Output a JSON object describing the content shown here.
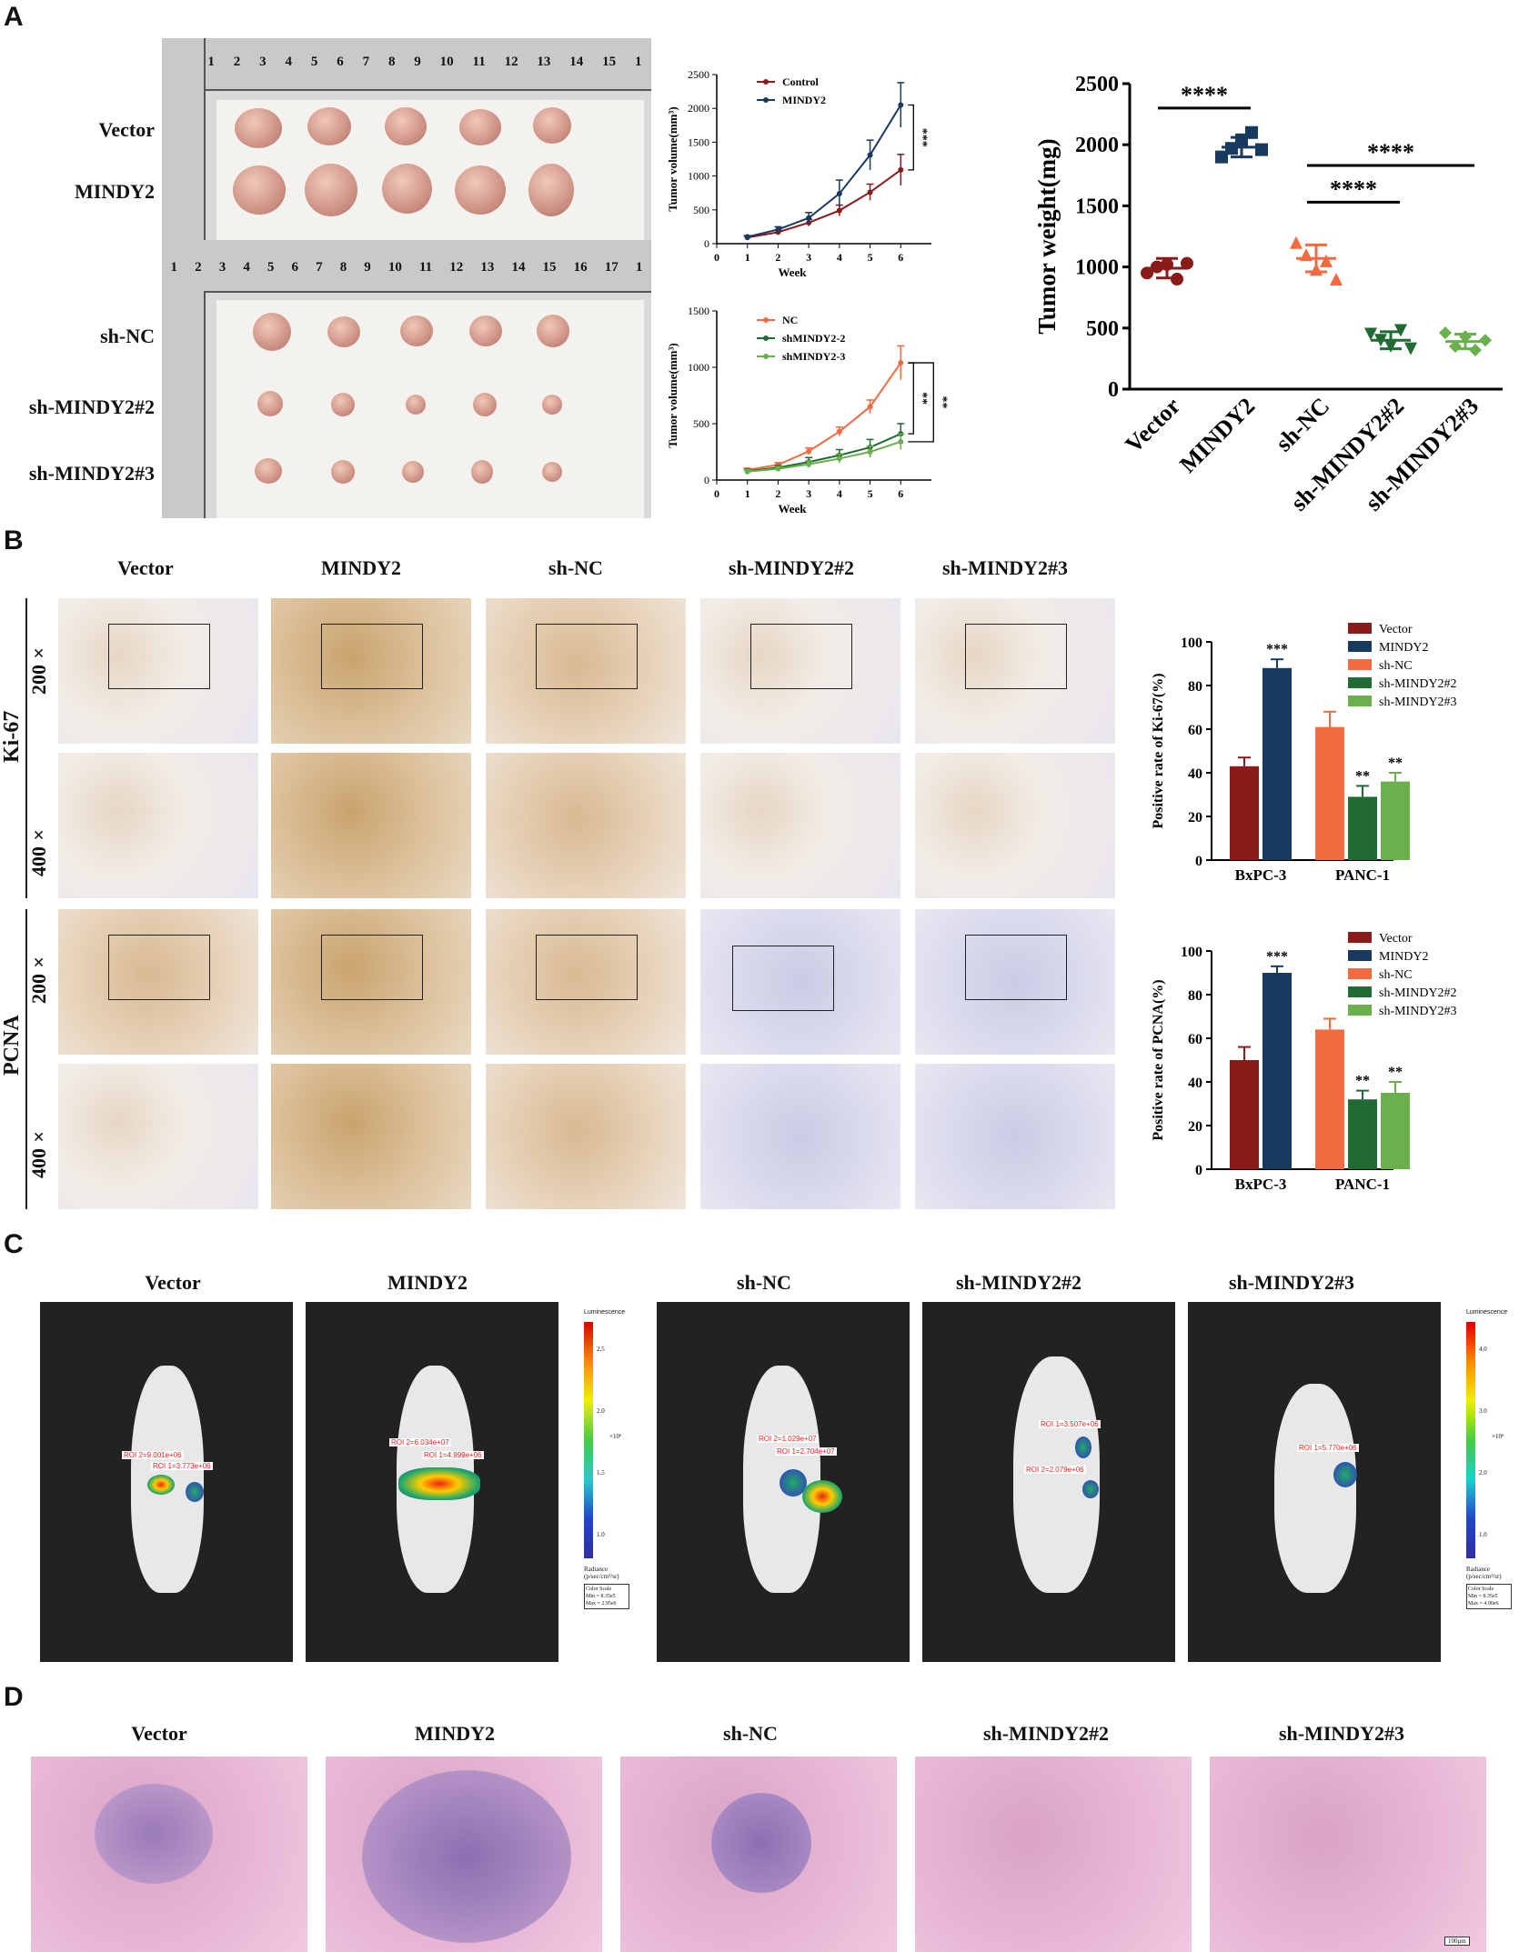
{
  "panels": {
    "a": "A",
    "b": "B",
    "c": "C",
    "d": "D"
  },
  "panelA": {
    "photo_top_rows": [
      "Vector",
      "MINDY2"
    ],
    "photo_bottom_rows": [
      "sh-NC",
      "sh-MINDY2#2",
      "sh-MINDY2#3"
    ],
    "ruler_numbers_top": [
      "1",
      "2",
      "3",
      "4",
      "5",
      "6",
      "7",
      "8",
      "9",
      "10",
      "11",
      "12",
      "13",
      "14",
      "15",
      "1"
    ],
    "ruler_numbers_bottom": [
      "1",
      "2",
      "3",
      "4",
      "5",
      "6",
      "7",
      "8",
      "9",
      "10",
      "11",
      "12",
      "13",
      "14",
      "15",
      "16",
      "17",
      "1"
    ]
  },
  "panelB": {
    "columns": [
      "Vector",
      "MINDY2",
      "sh-NC",
      "sh-MINDY2#2",
      "sh-MINDY2#3"
    ],
    "rows": {
      "ki67": "Ki-67",
      "pcna": "PCNA",
      "mag200": "200×",
      "mag400": "400×"
    }
  },
  "panelC": {
    "columns": [
      "Vector",
      "MINDY2",
      "sh-NC",
      "sh-MINDY2#2",
      "sh-MINDY2#3"
    ],
    "legend_title": "Luminescence",
    "legend_unit": "×10⁶",
    "legend_radiance": "Radiance",
    "legend_radiance_unit": "(p/sec/cm²/sr)",
    "colorbar_left": {
      "ticks": [
        "2.5",
        "2.0",
        "1.5",
        "1.0"
      ],
      "scale_title": "Color Scale",
      "min": "Min = 8.35e5",
      "max": "Max = 2.95e6"
    },
    "colorbar_right": {
      "ticks": [
        "4.0",
        "3.0",
        "2.0",
        "1.0"
      ],
      "scale_title": "Color Scale",
      "min": "Min = 8.35e5",
      "max": "Max = 4.90e6"
    },
    "roi_labels": [
      "ROI 2=9.001e+06",
      "ROI 1=3.773e+06",
      "ROI 2=6.034e+07",
      "ROI 1=4.999e+06",
      "ROI 2=1.029e+07",
      "ROI 1=2.704e+07",
      "ROI 1=3.507e+06",
      "ROI 2=2.079e+06",
      "ROI 1=5.770e+06"
    ]
  },
  "panelD": {
    "columns": [
      "Vector",
      "MINDY2",
      "sh-NC",
      "sh-MINDY2#2",
      "sh-MINDY2#3"
    ],
    "scale": "100μm"
  },
  "colors": {
    "control": "#8b1a1a",
    "mindy2": "#173a5e",
    "nc": "#f26a3f",
    "sh2": "#1f6b33",
    "sh3": "#6ab04c"
  },
  "chart_data": [
    {
      "type": "line",
      "id": "volume-overexpression",
      "ylabel": "Tumor volume(mm³)",
      "xlabel": "Week",
      "xlim": [
        0,
        7
      ],
      "ylim": [
        0,
        2500
      ],
      "xticks": [
        "0",
        "1",
        "2",
        "3",
        "4",
        "5",
        "6"
      ],
      "yticks": [
        "0",
        "500",
        "1000",
        "1500",
        "2000",
        "2500"
      ],
      "x": [
        1,
        2,
        3,
        4,
        5,
        6
      ],
      "series": [
        {
          "name": "Control",
          "values": [
            90,
            170,
            310,
            490,
            760,
            1090
          ],
          "err": [
            20,
            30,
            50,
            80,
            120,
            230
          ],
          "color": "#8b1a1a"
        },
        {
          "name": "MINDY2",
          "values": [
            100,
            210,
            380,
            740,
            1310,
            2050
          ],
          "err": [
            20,
            40,
            80,
            200,
            220,
            330
          ],
          "color": "#173a5e"
        }
      ],
      "significance": [
        "***"
      ]
    },
    {
      "type": "line",
      "id": "volume-knockdown",
      "ylabel": "Tumor volume(mm³)",
      "xlabel": "Week",
      "xlim": [
        0,
        7
      ],
      "ylim": [
        0,
        1500
      ],
      "xticks": [
        "0",
        "1",
        "2",
        "3",
        "4",
        "5",
        "6"
      ],
      "yticks": [
        "0",
        "500",
        "1000",
        "1500"
      ],
      "x": [
        1,
        2,
        3,
        4,
        5,
        6
      ],
      "series": [
        {
          "name": "NC",
          "values": [
            90,
            135,
            255,
            430,
            650,
            1040
          ],
          "err": [
            15,
            20,
            30,
            40,
            60,
            150
          ],
          "color": "#f26a3f"
        },
        {
          "name": "shMINDY2-2",
          "values": [
            80,
            110,
            160,
            220,
            290,
            410
          ],
          "err": [
            15,
            20,
            40,
            50,
            70,
            90
          ],
          "color": "#1f6b33"
        },
        {
          "name": "shMINDY2-3",
          "values": [
            75,
            100,
            140,
            190,
            250,
            340
          ],
          "err": [
            15,
            20,
            30,
            40,
            50,
            70
          ],
          "color": "#6ab04c"
        }
      ],
      "significance": [
        "**",
        "**"
      ]
    },
    {
      "type": "scatter",
      "id": "tumor-weight",
      "ylabel": "Tumor weight(mg)",
      "ylim": [
        0,
        2500
      ],
      "yticks": [
        "0",
        "500",
        "1000",
        "1500",
        "2000",
        "2500"
      ],
      "categories": [
        "Vector",
        "MINDY2",
        "sh-NC",
        "sh-MINDY2#2",
        "sh-MINDY2#3"
      ],
      "series": [
        {
          "name": "Vector",
          "values": [
            950,
            1000,
            1020,
            900,
            1030
          ],
          "mean": 990,
          "sd": 80,
          "color": "#8b1a1a",
          "marker": "circle"
        },
        {
          "name": "MINDY2",
          "values": [
            1900,
            1970,
            2040,
            2100,
            1960
          ],
          "mean": 1980,
          "sd": 80,
          "color": "#173a5e",
          "marker": "square"
        },
        {
          "name": "sh-NC",
          "values": [
            1200,
            1100,
            980,
            1050,
            900
          ],
          "mean": 1070,
          "sd": 110,
          "color": "#f26a3f",
          "marker": "triangle-up"
        },
        {
          "name": "sh-MINDY2#2",
          "values": [
            450,
            400,
            350,
            480,
            330
          ],
          "mean": 400,
          "sd": 70,
          "color": "#1f6b33",
          "marker": "triangle-down"
        },
        {
          "name": "sh-MINDY2#3",
          "values": [
            460,
            350,
            430,
            320,
            400
          ],
          "mean": 390,
          "sd": 60,
          "color": "#6ab04c",
          "marker": "diamond"
        }
      ],
      "significance": [
        "****",
        "****",
        "****"
      ]
    },
    {
      "type": "bar",
      "id": "ki67-rate",
      "ylabel": "Positive rate of Ki-67(%)",
      "ylim": [
        0,
        100
      ],
      "yticks": [
        "0",
        "20",
        "40",
        "60",
        "80",
        "100"
      ],
      "categories": [
        "BxPC-3",
        "PANC-1"
      ],
      "series": [
        {
          "name": "Vector",
          "group": "BxPC-3",
          "value": 43,
          "err": 4,
          "color": "#8b1a1a"
        },
        {
          "name": "MINDY2",
          "group": "BxPC-3",
          "value": 88,
          "err": 4,
          "color": "#173a5e",
          "sig": "***"
        },
        {
          "name": "sh-NC",
          "group": "PANC-1",
          "value": 61,
          "err": 7,
          "color": "#f26a3f"
        },
        {
          "name": "sh-MINDY2#2",
          "group": "PANC-1",
          "value": 29,
          "err": 5,
          "color": "#1f6b33",
          "sig": "**"
        },
        {
          "name": "sh-MINDY2#3",
          "group": "PANC-1",
          "value": 36,
          "err": 4,
          "color": "#6ab04c",
          "sig": "**"
        }
      ]
    },
    {
      "type": "bar",
      "id": "pcna-rate",
      "ylabel": "Positive rate of PCNA(%)",
      "ylim": [
        0,
        100
      ],
      "yticks": [
        "0",
        "20",
        "40",
        "60",
        "80",
        "100"
      ],
      "categories": [
        "BxPC-3",
        "PANC-1"
      ],
      "series": [
        {
          "name": "Vector",
          "group": "BxPC-3",
          "value": 50,
          "err": 6,
          "color": "#8b1a1a"
        },
        {
          "name": "MINDY2",
          "group": "BxPC-3",
          "value": 90,
          "err": 3,
          "color": "#173a5e",
          "sig": "***"
        },
        {
          "name": "sh-NC",
          "group": "PANC-1",
          "value": 64,
          "err": 5,
          "color": "#f26a3f"
        },
        {
          "name": "sh-MINDY2#2",
          "group": "PANC-1",
          "value": 32,
          "err": 4,
          "color": "#1f6b33",
          "sig": "**"
        },
        {
          "name": "sh-MINDY2#3",
          "group": "PANC-1",
          "value": 35,
          "err": 5,
          "color": "#6ab04c",
          "sig": "**"
        }
      ]
    }
  ]
}
